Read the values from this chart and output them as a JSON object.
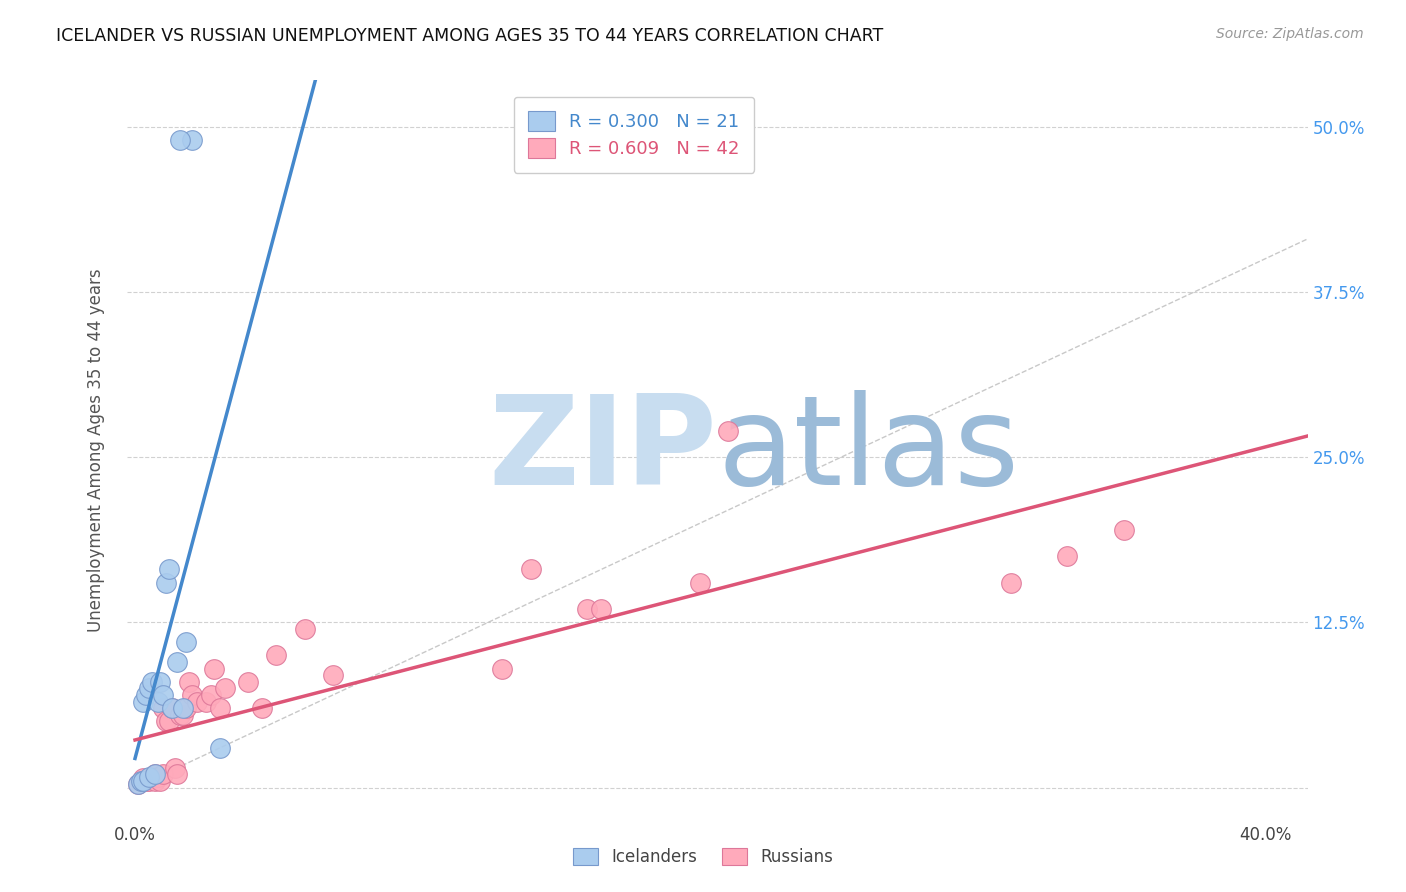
{
  "title": "ICELANDER VS RUSSIAN UNEMPLOYMENT AMONG AGES 35 TO 44 YEARS CORRELATION CHART",
  "source": "Source: ZipAtlas.com",
  "ylabel": "Unemployment Among Ages 35 to 44 years",
  "xlim": [
    -0.003,
    0.415
  ],
  "ylim": [
    -0.025,
    0.535
  ],
  "xtick_vals": [
    0.0,
    0.1,
    0.2,
    0.3,
    0.4
  ],
  "ytick_vals": [
    0.0,
    0.125,
    0.25,
    0.375,
    0.5
  ],
  "right_ytick_labels": [
    "",
    "12.5%",
    "25.0%",
    "37.5%",
    "50.0%"
  ],
  "grid_color": "#cccccc",
  "bg_color": "#ffffff",
  "icel_color": "#aaccee",
  "icel_edge": "#7799cc",
  "russ_color": "#ffaabb",
  "russ_edge": "#dd7799",
  "icel_line_color": "#4488cc",
  "russ_line_color": "#dd5577",
  "diag_color": "#bbbbbb",
  "watermark_zi_color": "#c8ddf0",
  "watermark_atlas_color": "#9bbbd8",
  "icel_R": 0.3,
  "icel_N": 21,
  "russ_R": 0.609,
  "russ_N": 42,
  "icel_x": [
    0.001,
    0.002,
    0.003,
    0.003,
    0.004,
    0.005,
    0.005,
    0.006,
    0.007,
    0.008,
    0.009,
    0.01,
    0.011,
    0.012,
    0.013,
    0.015,
    0.017,
    0.02,
    0.03,
    0.016,
    0.018
  ],
  "icel_y": [
    0.003,
    0.005,
    0.005,
    0.065,
    0.07,
    0.075,
    0.008,
    0.08,
    0.01,
    0.065,
    0.08,
    0.07,
    0.155,
    0.165,
    0.06,
    0.095,
    0.06,
    0.49,
    0.03,
    0.49,
    0.11
  ],
  "russ_x": [
    0.001,
    0.002,
    0.003,
    0.004,
    0.005,
    0.006,
    0.007,
    0.007,
    0.008,
    0.009,
    0.01,
    0.01,
    0.011,
    0.012,
    0.013,
    0.014,
    0.015,
    0.016,
    0.017,
    0.018,
    0.019,
    0.02,
    0.022,
    0.025,
    0.027,
    0.028,
    0.03,
    0.032,
    0.04,
    0.05,
    0.06,
    0.07,
    0.13,
    0.14,
    0.16,
    0.165,
    0.2,
    0.21,
    0.31,
    0.33,
    0.35,
    0.045
  ],
  "russ_y": [
    0.003,
    0.005,
    0.007,
    0.005,
    0.005,
    0.008,
    0.01,
    0.005,
    0.008,
    0.005,
    0.01,
    0.06,
    0.05,
    0.05,
    0.06,
    0.015,
    0.01,
    0.055,
    0.055,
    0.06,
    0.08,
    0.07,
    0.065,
    0.065,
    0.07,
    0.09,
    0.06,
    0.075,
    0.08,
    0.1,
    0.12,
    0.085,
    0.09,
    0.165,
    0.135,
    0.135,
    0.155,
    0.27,
    0.155,
    0.175,
    0.195,
    0.06
  ]
}
